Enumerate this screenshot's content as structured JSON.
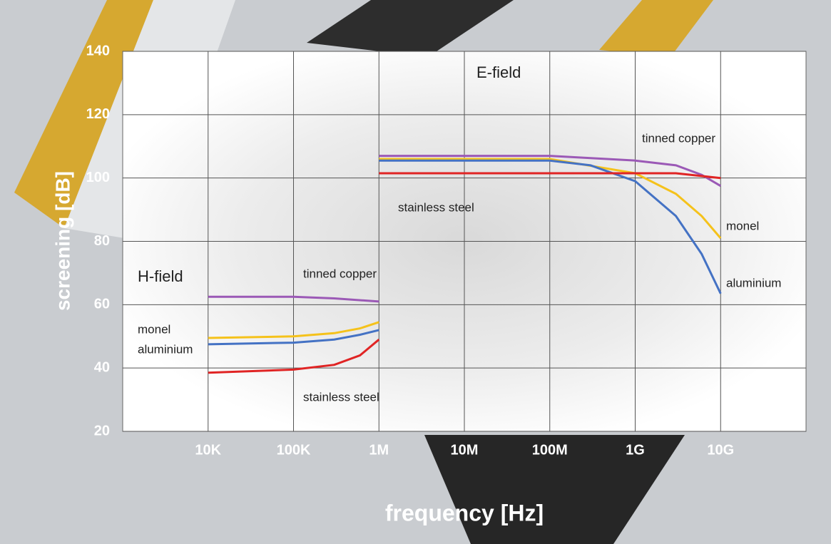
{
  "chart_data": {
    "type": "line",
    "x_label": "frequency [Hz]",
    "y_label": "screening [dB]",
    "annotations": [
      "E-field",
      "H-field"
    ],
    "log_x": true,
    "grid": true,
    "xlim": [
      1000,
      100000000000
    ],
    "ylim": [
      20,
      140
    ],
    "xticks": [
      {
        "value": 10000,
        "label": "10K"
      },
      {
        "value": 100000,
        "label": "100K"
      },
      {
        "value": 1000000,
        "label": "1M"
      },
      {
        "value": 10000000,
        "label": "10M"
      },
      {
        "value": 100000000,
        "label": "100M"
      },
      {
        "value": 1000000000,
        "label": "1G"
      },
      {
        "value": 10000000000,
        "label": "10G"
      }
    ],
    "yticks": [
      20,
      40,
      60,
      80,
      100,
      120,
      140
    ],
    "series": [
      {
        "name": "tinned copper",
        "color": "#9b59b6",
        "x": [
          10000,
          100000,
          300000,
          1000000
        ],
        "values": [
          62.5,
          62.5,
          62,
          61
        ]
      },
      {
        "name": "monel",
        "color": "#f5c21b",
        "x": [
          10000,
          100000,
          300000,
          600000,
          1000000
        ],
        "values": [
          49.5,
          50,
          51,
          52.5,
          54.5
        ]
      },
      {
        "name": "aluminium",
        "color": "#4472c4",
        "x": [
          10000,
          100000,
          300000,
          600000,
          1000000
        ],
        "values": [
          47.5,
          48,
          49,
          50.5,
          52
        ]
      },
      {
        "name": "stainless steel",
        "color": "#e02424",
        "x": [
          10000,
          100000,
          300000,
          600000,
          1000000
        ],
        "values": [
          38.5,
          39.5,
          41,
          44,
          49
        ]
      },
      {
        "name": "tinned copper",
        "color": "#9b59b6",
        "x": [
          1000000,
          100000000,
          1000000000,
          3000000000,
          6000000000,
          10000000000
        ],
        "values": [
          107,
          107,
          105.5,
          104,
          101,
          97.5
        ]
      },
      {
        "name": "monel",
        "color": "#f5c21b",
        "x": [
          1000000,
          100000000,
          1000000000,
          3000000000,
          6000000000,
          10000000000
        ],
        "values": [
          106,
          106,
          101.5,
          95,
          88,
          81
        ]
      },
      {
        "name": "aluminium",
        "color": "#4472c4",
        "x": [
          1000000,
          100000000,
          300000000,
          1000000000,
          3000000000,
          6000000000,
          10000000000
        ],
        "values": [
          105.5,
          105.5,
          104,
          99,
          88,
          76,
          63.5
        ]
      },
      {
        "name": "stainless steel",
        "color": "#e02424",
        "x": [
          1000000,
          100000000,
          3000000000,
          10000000000
        ],
        "values": [
          101.5,
          101.5,
          101.5,
          100
        ]
      }
    ]
  }
}
